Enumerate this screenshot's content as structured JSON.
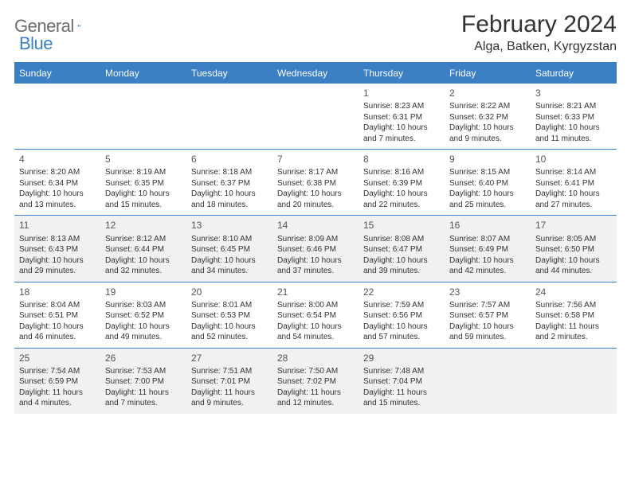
{
  "brand": {
    "text1": "General",
    "text2": "Blue"
  },
  "title": "February 2024",
  "location": "Alga, Batken, Kyrgyzstan",
  "colors": {
    "accent": "#3b7fc4",
    "alt_row_bg": "#f1f1f1",
    "text": "#333333",
    "logo_gray": "#6d6d6d"
  },
  "day_headers": [
    "Sunday",
    "Monday",
    "Tuesday",
    "Wednesday",
    "Thursday",
    "Friday",
    "Saturday"
  ],
  "weeks": [
    {
      "alt": false,
      "cells": [
        null,
        null,
        null,
        null,
        {
          "n": "1",
          "sr": "Sunrise: 8:23 AM",
          "ss": "Sunset: 6:31 PM",
          "d1": "Daylight: 10 hours",
          "d2": "and 7 minutes."
        },
        {
          "n": "2",
          "sr": "Sunrise: 8:22 AM",
          "ss": "Sunset: 6:32 PM",
          "d1": "Daylight: 10 hours",
          "d2": "and 9 minutes."
        },
        {
          "n": "3",
          "sr": "Sunrise: 8:21 AM",
          "ss": "Sunset: 6:33 PM",
          "d1": "Daylight: 10 hours",
          "d2": "and 11 minutes."
        }
      ]
    },
    {
      "alt": false,
      "cells": [
        {
          "n": "4",
          "sr": "Sunrise: 8:20 AM",
          "ss": "Sunset: 6:34 PM",
          "d1": "Daylight: 10 hours",
          "d2": "and 13 minutes."
        },
        {
          "n": "5",
          "sr": "Sunrise: 8:19 AM",
          "ss": "Sunset: 6:35 PM",
          "d1": "Daylight: 10 hours",
          "d2": "and 15 minutes."
        },
        {
          "n": "6",
          "sr": "Sunrise: 8:18 AM",
          "ss": "Sunset: 6:37 PM",
          "d1": "Daylight: 10 hours",
          "d2": "and 18 minutes."
        },
        {
          "n": "7",
          "sr": "Sunrise: 8:17 AM",
          "ss": "Sunset: 6:38 PM",
          "d1": "Daylight: 10 hours",
          "d2": "and 20 minutes."
        },
        {
          "n": "8",
          "sr": "Sunrise: 8:16 AM",
          "ss": "Sunset: 6:39 PM",
          "d1": "Daylight: 10 hours",
          "d2": "and 22 minutes."
        },
        {
          "n": "9",
          "sr": "Sunrise: 8:15 AM",
          "ss": "Sunset: 6:40 PM",
          "d1": "Daylight: 10 hours",
          "d2": "and 25 minutes."
        },
        {
          "n": "10",
          "sr": "Sunrise: 8:14 AM",
          "ss": "Sunset: 6:41 PM",
          "d1": "Daylight: 10 hours",
          "d2": "and 27 minutes."
        }
      ]
    },
    {
      "alt": true,
      "cells": [
        {
          "n": "11",
          "sr": "Sunrise: 8:13 AM",
          "ss": "Sunset: 6:43 PM",
          "d1": "Daylight: 10 hours",
          "d2": "and 29 minutes."
        },
        {
          "n": "12",
          "sr": "Sunrise: 8:12 AM",
          "ss": "Sunset: 6:44 PM",
          "d1": "Daylight: 10 hours",
          "d2": "and 32 minutes."
        },
        {
          "n": "13",
          "sr": "Sunrise: 8:10 AM",
          "ss": "Sunset: 6:45 PM",
          "d1": "Daylight: 10 hours",
          "d2": "and 34 minutes."
        },
        {
          "n": "14",
          "sr": "Sunrise: 8:09 AM",
          "ss": "Sunset: 6:46 PM",
          "d1": "Daylight: 10 hours",
          "d2": "and 37 minutes."
        },
        {
          "n": "15",
          "sr": "Sunrise: 8:08 AM",
          "ss": "Sunset: 6:47 PM",
          "d1": "Daylight: 10 hours",
          "d2": "and 39 minutes."
        },
        {
          "n": "16",
          "sr": "Sunrise: 8:07 AM",
          "ss": "Sunset: 6:49 PM",
          "d1": "Daylight: 10 hours",
          "d2": "and 42 minutes."
        },
        {
          "n": "17",
          "sr": "Sunrise: 8:05 AM",
          "ss": "Sunset: 6:50 PM",
          "d1": "Daylight: 10 hours",
          "d2": "and 44 minutes."
        }
      ]
    },
    {
      "alt": false,
      "cells": [
        {
          "n": "18",
          "sr": "Sunrise: 8:04 AM",
          "ss": "Sunset: 6:51 PM",
          "d1": "Daylight: 10 hours",
          "d2": "and 46 minutes."
        },
        {
          "n": "19",
          "sr": "Sunrise: 8:03 AM",
          "ss": "Sunset: 6:52 PM",
          "d1": "Daylight: 10 hours",
          "d2": "and 49 minutes."
        },
        {
          "n": "20",
          "sr": "Sunrise: 8:01 AM",
          "ss": "Sunset: 6:53 PM",
          "d1": "Daylight: 10 hours",
          "d2": "and 52 minutes."
        },
        {
          "n": "21",
          "sr": "Sunrise: 8:00 AM",
          "ss": "Sunset: 6:54 PM",
          "d1": "Daylight: 10 hours",
          "d2": "and 54 minutes."
        },
        {
          "n": "22",
          "sr": "Sunrise: 7:59 AM",
          "ss": "Sunset: 6:56 PM",
          "d1": "Daylight: 10 hours",
          "d2": "and 57 minutes."
        },
        {
          "n": "23",
          "sr": "Sunrise: 7:57 AM",
          "ss": "Sunset: 6:57 PM",
          "d1": "Daylight: 10 hours",
          "d2": "and 59 minutes."
        },
        {
          "n": "24",
          "sr": "Sunrise: 7:56 AM",
          "ss": "Sunset: 6:58 PM",
          "d1": "Daylight: 11 hours",
          "d2": "and 2 minutes."
        }
      ]
    },
    {
      "alt": true,
      "cells": [
        {
          "n": "25",
          "sr": "Sunrise: 7:54 AM",
          "ss": "Sunset: 6:59 PM",
          "d1": "Daylight: 11 hours",
          "d2": "and 4 minutes."
        },
        {
          "n": "26",
          "sr": "Sunrise: 7:53 AM",
          "ss": "Sunset: 7:00 PM",
          "d1": "Daylight: 11 hours",
          "d2": "and 7 minutes."
        },
        {
          "n": "27",
          "sr": "Sunrise: 7:51 AM",
          "ss": "Sunset: 7:01 PM",
          "d1": "Daylight: 11 hours",
          "d2": "and 9 minutes."
        },
        {
          "n": "28",
          "sr": "Sunrise: 7:50 AM",
          "ss": "Sunset: 7:02 PM",
          "d1": "Daylight: 11 hours",
          "d2": "and 12 minutes."
        },
        {
          "n": "29",
          "sr": "Sunrise: 7:48 AM",
          "ss": "Sunset: 7:04 PM",
          "d1": "Daylight: 11 hours",
          "d2": "and 15 minutes."
        },
        null,
        null
      ]
    }
  ]
}
